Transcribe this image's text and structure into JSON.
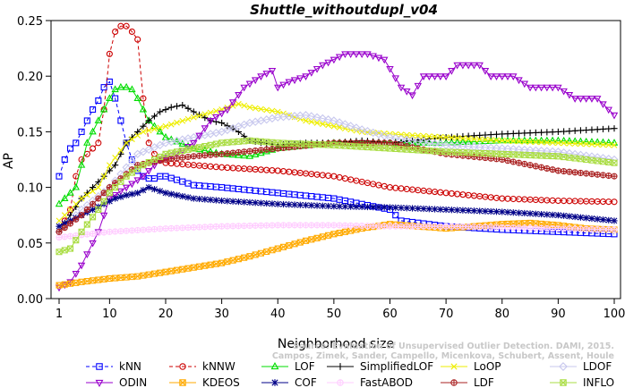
{
  "chart_data": {
    "type": "line",
    "title": "Shuttle_withoutdupl_v04",
    "xlabel": "Neighborhood size",
    "ylabel": "AP",
    "xlim": [
      1,
      100
    ],
    "ylim": [
      0,
      0.25
    ],
    "x_ticks": [
      1,
      10,
      20,
      30,
      40,
      50,
      60,
      70,
      80,
      90,
      100
    ],
    "y_ticks": [
      "0.00",
      "0.05",
      "0.10",
      "0.15",
      "0.20",
      "0.25"
    ],
    "grid": false,
    "legend_position": "bottom",
    "watermark": [
      "Source: Evaluation of Unsupervised Outlier Detection. DAMI, 2015.",
      "Campos, Zimek, Sander, Campello, Micenkova, Schubert, Assent, Houle"
    ],
    "series": [
      {
        "name": "kNN",
        "color": "#0000ff",
        "marker": "square",
        "dash": "4,3",
        "points": [
          [
            1,
            0.11
          ],
          [
            2,
            0.125
          ],
          [
            3,
            0.135
          ],
          [
            4,
            0.14
          ],
          [
            5,
            0.15
          ],
          [
            6,
            0.16
          ],
          [
            7,
            0.17
          ],
          [
            8,
            0.178
          ],
          [
            9,
            0.19
          ],
          [
            10,
            0.195
          ],
          [
            11,
            0.18
          ],
          [
            12,
            0.16
          ],
          [
            13,
            0.14
          ],
          [
            14,
            0.125
          ],
          [
            15,
            0.115
          ],
          [
            16,
            0.11
          ],
          [
            17,
            0.108
          ],
          [
            18,
            0.108
          ],
          [
            19,
            0.11
          ],
          [
            20,
            0.11
          ],
          [
            25,
            0.102
          ],
          [
            30,
            0.1
          ],
          [
            40,
            0.095
          ],
          [
            50,
            0.09
          ],
          [
            60,
            0.08
          ],
          [
            62,
            0.07
          ],
          [
            70,
            0.065
          ],
          [
            80,
            0.062
          ],
          [
            90,
            0.06
          ],
          [
            100,
            0.058
          ]
        ]
      },
      {
        "name": "kNNW",
        "color": "#cc0000",
        "marker": "circle",
        "dash": "4,3",
        "points": [
          [
            1,
            0.06
          ],
          [
            2,
            0.07
          ],
          [
            3,
            0.08
          ],
          [
            4,
            0.11
          ],
          [
            5,
            0.125
          ],
          [
            6,
            0.13
          ],
          [
            7,
            0.135
          ],
          [
            8,
            0.14
          ],
          [
            9,
            0.17
          ],
          [
            10,
            0.22
          ],
          [
            11,
            0.24
          ],
          [
            12,
            0.245
          ],
          [
            13,
            0.245
          ],
          [
            14,
            0.24
          ],
          [
            15,
            0.233
          ],
          [
            16,
            0.18
          ],
          [
            17,
            0.14
          ],
          [
            18,
            0.13
          ],
          [
            19,
            0.125
          ],
          [
            20,
            0.122
          ],
          [
            25,
            0.12
          ],
          [
            30,
            0.118
          ],
          [
            40,
            0.115
          ],
          [
            50,
            0.11
          ],
          [
            60,
            0.1
          ],
          [
            70,
            0.095
          ],
          [
            80,
            0.09
          ],
          [
            90,
            0.088
          ],
          [
            100,
            0.087
          ]
        ]
      },
      {
        "name": "LOF",
        "color": "#00dd00",
        "marker": "triangle-up",
        "dash": "",
        "points": [
          [
            1,
            0.085
          ],
          [
            2,
            0.09
          ],
          [
            3,
            0.095
          ],
          [
            4,
            0.1
          ],
          [
            5,
            0.12
          ],
          [
            6,
            0.14
          ],
          [
            7,
            0.15
          ],
          [
            8,
            0.16
          ],
          [
            9,
            0.17
          ],
          [
            10,
            0.18
          ],
          [
            11,
            0.188
          ],
          [
            12,
            0.19
          ],
          [
            13,
            0.19
          ],
          [
            14,
            0.188
          ],
          [
            15,
            0.18
          ],
          [
            17,
            0.16
          ],
          [
            20,
            0.145
          ],
          [
            25,
            0.135
          ],
          [
            30,
            0.13
          ],
          [
            35,
            0.128
          ],
          [
            40,
            0.135
          ],
          [
            50,
            0.14
          ],
          [
            60,
            0.14
          ],
          [
            70,
            0.14
          ],
          [
            80,
            0.142
          ],
          [
            90,
            0.142
          ],
          [
            100,
            0.14
          ]
        ]
      },
      {
        "name": "SimplifiedLOF",
        "color": "#000000",
        "marker": "plus",
        "dash": "",
        "points": [
          [
            1,
            0.06
          ],
          [
            3,
            0.075
          ],
          [
            5,
            0.09
          ],
          [
            7,
            0.1
          ],
          [
            9,
            0.11
          ],
          [
            11,
            0.12
          ],
          [
            13,
            0.14
          ],
          [
            15,
            0.15
          ],
          [
            17,
            0.16
          ],
          [
            19,
            0.168
          ],
          [
            21,
            0.172
          ],
          [
            23,
            0.174
          ],
          [
            25,
            0.168
          ],
          [
            28,
            0.16
          ],
          [
            30,
            0.158
          ],
          [
            33,
            0.15
          ],
          [
            35,
            0.142
          ],
          [
            40,
            0.138
          ],
          [
            45,
            0.14
          ],
          [
            50,
            0.14
          ],
          [
            55,
            0.142
          ],
          [
            60,
            0.14
          ],
          [
            70,
            0.145
          ],
          [
            80,
            0.148
          ],
          [
            90,
            0.15
          ],
          [
            100,
            0.153
          ]
        ]
      },
      {
        "name": "LoOP",
        "color": "#eeee00",
        "marker": "x",
        "dash": "",
        "points": [
          [
            1,
            0.07
          ],
          [
            3,
            0.08
          ],
          [
            5,
            0.09
          ],
          [
            8,
            0.1
          ],
          [
            10,
            0.12
          ],
          [
            13,
            0.14
          ],
          [
            16,
            0.15
          ],
          [
            20,
            0.155
          ],
          [
            25,
            0.163
          ],
          [
            30,
            0.17
          ],
          [
            33,
            0.175
          ],
          [
            35,
            0.172
          ],
          [
            40,
            0.168
          ],
          [
            45,
            0.16
          ],
          [
            50,
            0.155
          ],
          [
            55,
            0.15
          ],
          [
            60,
            0.148
          ],
          [
            70,
            0.145
          ],
          [
            80,
            0.142
          ],
          [
            90,
            0.14
          ],
          [
            100,
            0.138
          ]
        ]
      },
      {
        "name": "LDOF",
        "color": "#c8c8ee",
        "marker": "diamond",
        "dash": "",
        "points": [
          [
            1,
            0.06
          ],
          [
            5,
            0.08
          ],
          [
            10,
            0.1
          ],
          [
            15,
            0.13
          ],
          [
            20,
            0.14
          ],
          [
            25,
            0.145
          ],
          [
            30,
            0.15
          ],
          [
            35,
            0.158
          ],
          [
            40,
            0.163
          ],
          [
            45,
            0.165
          ],
          [
            50,
            0.16
          ],
          [
            55,
            0.152
          ],
          [
            60,
            0.145
          ],
          [
            70,
            0.138
          ],
          [
            80,
            0.135
          ],
          [
            90,
            0.132
          ],
          [
            100,
            0.125
          ]
        ]
      },
      {
        "name": "ODIN",
        "color": "#9900cc",
        "marker": "triangle-down",
        "dash": "",
        "points": [
          [
            1,
            0.01
          ],
          [
            3,
            0.015
          ],
          [
            5,
            0.03
          ],
          [
            8,
            0.06
          ],
          [
            10,
            0.09
          ],
          [
            13,
            0.1
          ],
          [
            16,
            0.11
          ],
          [
            19,
            0.125
          ],
          [
            22,
            0.13
          ],
          [
            25,
            0.14
          ],
          [
            28,
            0.16
          ],
          [
            31,
            0.17
          ],
          [
            34,
            0.19
          ],
          [
            37,
            0.2
          ],
          [
            39,
            0.205
          ],
          [
            40,
            0.19
          ],
          [
            42,
            0.195
          ],
          [
            45,
            0.2
          ],
          [
            48,
            0.21
          ],
          [
            52,
            0.22
          ],
          [
            56,
            0.22
          ],
          [
            59,
            0.215
          ],
          [
            62,
            0.19
          ],
          [
            64,
            0.183
          ],
          [
            66,
            0.2
          ],
          [
            70,
            0.2
          ],
          [
            72,
            0.21
          ],
          [
            76,
            0.21
          ],
          [
            78,
            0.2
          ],
          [
            82,
            0.2
          ],
          [
            85,
            0.19
          ],
          [
            88,
            0.19
          ],
          [
            90,
            0.19
          ],
          [
            93,
            0.18
          ],
          [
            97,
            0.18
          ],
          [
            100,
            0.165
          ]
        ]
      },
      {
        "name": "KDEOS",
        "color": "#ffaa00",
        "marker": "square-x",
        "dash": "",
        "points": [
          [
            1,
            0.012
          ],
          [
            5,
            0.015
          ],
          [
            10,
            0.018
          ],
          [
            15,
            0.02
          ],
          [
            20,
            0.024
          ],
          [
            25,
            0.028
          ],
          [
            30,
            0.032
          ],
          [
            35,
            0.038
          ],
          [
            40,
            0.045
          ],
          [
            45,
            0.052
          ],
          [
            50,
            0.058
          ],
          [
            55,
            0.063
          ],
          [
            60,
            0.067
          ],
          [
            65,
            0.065
          ],
          [
            70,
            0.063
          ],
          [
            75,
            0.065
          ],
          [
            80,
            0.067
          ],
          [
            85,
            0.068
          ],
          [
            90,
            0.066
          ],
          [
            95,
            0.063
          ],
          [
            100,
            0.062
          ]
        ]
      },
      {
        "name": "COF",
        "color": "#000088",
        "marker": "asterisk",
        "dash": "",
        "points": [
          [
            1,
            0.065
          ],
          [
            3,
            0.07
          ],
          [
            5,
            0.075
          ],
          [
            7,
            0.08
          ],
          [
            9,
            0.085
          ],
          [
            11,
            0.09
          ],
          [
            13,
            0.093
          ],
          [
            15,
            0.095
          ],
          [
            17,
            0.1
          ],
          [
            20,
            0.095
          ],
          [
            25,
            0.09
          ],
          [
            30,
            0.088
          ],
          [
            40,
            0.085
          ],
          [
            50,
            0.083
          ],
          [
            60,
            0.082
          ],
          [
            70,
            0.08
          ],
          [
            80,
            0.078
          ],
          [
            90,
            0.075
          ],
          [
            100,
            0.07
          ]
        ]
      },
      {
        "name": "FastABOD",
        "color": "#ffccff",
        "marker": "circle-plus",
        "dash": "",
        "points": [
          [
            1,
            0.055
          ],
          [
            10,
            0.06
          ],
          [
            20,
            0.063
          ],
          [
            30,
            0.065
          ],
          [
            40,
            0.066
          ],
          [
            50,
            0.066
          ],
          [
            60,
            0.065
          ],
          [
            70,
            0.065
          ],
          [
            80,
            0.064
          ],
          [
            90,
            0.063
          ],
          [
            100,
            0.062
          ]
        ]
      },
      {
        "name": "LDF",
        "color": "#aa2222",
        "marker": "circle-plus",
        "dash": "",
        "points": [
          [
            1,
            0.06
          ],
          [
            5,
            0.075
          ],
          [
            10,
            0.1
          ],
          [
            15,
            0.12
          ],
          [
            20,
            0.125
          ],
          [
            25,
            0.128
          ],
          [
            30,
            0.13
          ],
          [
            40,
            0.135
          ],
          [
            50,
            0.14
          ],
          [
            60,
            0.14
          ],
          [
            70,
            0.13
          ],
          [
            80,
            0.125
          ],
          [
            90,
            0.115
          ],
          [
            100,
            0.11
          ]
        ]
      },
      {
        "name": "INFLO",
        "color": "#aadd44",
        "marker": "square-x",
        "dash": "",
        "points": [
          [
            1,
            0.042
          ],
          [
            3,
            0.045
          ],
          [
            5,
            0.06
          ],
          [
            8,
            0.08
          ],
          [
            10,
            0.095
          ],
          [
            13,
            0.11
          ],
          [
            16,
            0.12
          ],
          [
            20,
            0.13
          ],
          [
            25,
            0.135
          ],
          [
            30,
            0.14
          ],
          [
            35,
            0.142
          ],
          [
            40,
            0.14
          ],
          [
            50,
            0.138
          ],
          [
            60,
            0.135
          ],
          [
            70,
            0.132
          ],
          [
            80,
            0.13
          ],
          [
            90,
            0.128
          ],
          [
            100,
            0.122
          ]
        ]
      }
    ]
  }
}
